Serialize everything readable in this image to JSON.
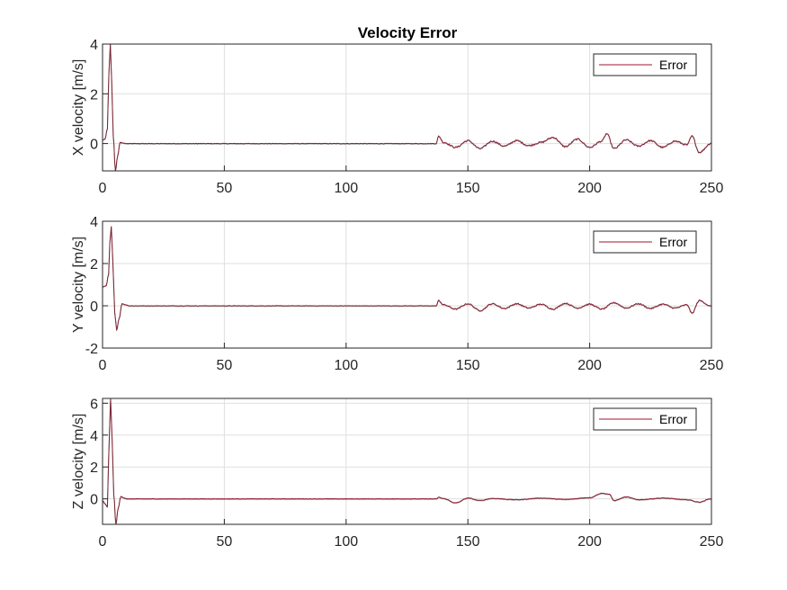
{
  "figure": {
    "title": "Velocity Error"
  },
  "chart_data": [
    {
      "type": "line",
      "title": "Velocity Error",
      "xlabel": "",
      "ylabel": "X velocity [m/s]",
      "xlim": [
        0,
        250
      ],
      "ylim": [
        -1.1,
        4
      ],
      "xticks": [
        0,
        50,
        100,
        150,
        200,
        250
      ],
      "yticks": [
        0,
        2,
        4
      ],
      "grid": true,
      "legend": {
        "placement": "top-right",
        "entries": [
          "Error"
        ]
      },
      "colors": {
        "series": "#a2142f",
        "trace": "#3b3b3b"
      },
      "series": [
        {
          "name": "Error",
          "profile": {
            "init": 0.15,
            "peak": 4.0,
            "peak_t": 3.2,
            "dip": -1.1,
            "dip_t": 5.3,
            "settle_t": 10,
            "noise_t": 137,
            "noise_amp": 0.18,
            "spike": 0.3
          },
          "points": [
            [
              0,
              0.15
            ],
            [
              1,
              0.18
            ],
            [
              2,
              0.6
            ],
            [
              2.6,
              2.8
            ],
            [
              3.2,
              4.0
            ],
            [
              3.8,
              2.4
            ],
            [
              4.4,
              0.3
            ],
            [
              5.3,
              -1.1
            ],
            [
              6.2,
              -0.5
            ],
            [
              7.2,
              0.05
            ],
            [
              8.5,
              0.02
            ],
            [
              10,
              0
            ],
            [
              137,
              0
            ],
            [
              138,
              0.3
            ],
            [
              140,
              0.05
            ],
            [
              145,
              -0.15
            ],
            [
              150,
              0.12
            ],
            [
              155,
              -0.2
            ],
            [
              160,
              0.1
            ],
            [
              165,
              -0.1
            ],
            [
              170,
              0.12
            ],
            [
              175,
              -0.08
            ],
            [
              180,
              0.05
            ],
            [
              185,
              0.25
            ],
            [
              190,
              -0.12
            ],
            [
              195,
              0.18
            ],
            [
              200,
              -0.15
            ],
            [
              205,
              0.1
            ],
            [
              207,
              0.4
            ],
            [
              210,
              -0.2
            ],
            [
              215,
              0.15
            ],
            [
              220,
              -0.1
            ],
            [
              225,
              0.12
            ],
            [
              230,
              -0.15
            ],
            [
              235,
              0.1
            ],
            [
              240,
              -0.05
            ],
            [
              242,
              0.3
            ],
            [
              245,
              -0.35
            ],
            [
              250,
              0.02
            ]
          ]
        }
      ]
    },
    {
      "type": "line",
      "title": "",
      "xlabel": "",
      "ylabel": "Y velocity [m/s]",
      "xlim": [
        0,
        250
      ],
      "ylim": [
        -2,
        4
      ],
      "xticks": [
        0,
        50,
        100,
        150,
        200,
        250
      ],
      "yticks": [
        -2,
        0,
        2,
        4
      ],
      "grid": true,
      "legend": {
        "placement": "top-right",
        "entries": [
          "Error"
        ]
      },
      "colors": {
        "series": "#a2142f",
        "trace": "#3b3b3b"
      },
      "series": [
        {
          "name": "Error",
          "profile": {
            "init": 0.9,
            "peak": 3.75,
            "peak_t": 3.6,
            "dip": -1.15,
            "dip_t": 5.8,
            "settle_t": 11,
            "noise_t": 137,
            "noise_amp": 0.16,
            "spike": 0.25
          },
          "points": [
            [
              0,
              0.9
            ],
            [
              1.5,
              0.95
            ],
            [
              2.5,
              1.5
            ],
            [
              3.0,
              3.0
            ],
            [
              3.6,
              3.75
            ],
            [
              4.2,
              2.2
            ],
            [
              5.0,
              -0.3
            ],
            [
              5.8,
              -1.15
            ],
            [
              6.8,
              -0.6
            ],
            [
              8,
              0.1
            ],
            [
              9.5,
              0.05
            ],
            [
              11,
              0
            ],
            [
              137,
              0
            ],
            [
              138,
              0.25
            ],
            [
              140,
              0.05
            ],
            [
              145,
              -0.15
            ],
            [
              150,
              0.1
            ],
            [
              155,
              -0.22
            ],
            [
              160,
              0.1
            ],
            [
              165,
              -0.12
            ],
            [
              170,
              0.1
            ],
            [
              175,
              -0.1
            ],
            [
              180,
              0.08
            ],
            [
              185,
              -0.15
            ],
            [
              190,
              0.12
            ],
            [
              195,
              -0.1
            ],
            [
              200,
              0.08
            ],
            [
              205,
              -0.15
            ],
            [
              210,
              0.15
            ],
            [
              215,
              -0.1
            ],
            [
              220,
              0.1
            ],
            [
              225,
              -0.12
            ],
            [
              230,
              0.08
            ],
            [
              235,
              -0.1
            ],
            [
              240,
              0.05
            ],
            [
              242,
              -0.35
            ],
            [
              245,
              0.25
            ],
            [
              250,
              -0.02
            ]
          ]
        }
      ]
    },
    {
      "type": "line",
      "title": "",
      "xlabel": "",
      "ylabel": "Z velocity [m/s]",
      "xlim": [
        0,
        250
      ],
      "ylim": [
        -1.6,
        6.3
      ],
      "xticks": [
        0,
        50,
        100,
        150,
        200,
        250
      ],
      "yticks": [
        0,
        2,
        4,
        6
      ],
      "grid": true,
      "legend": {
        "placement": "top-right",
        "entries": [
          "Error"
        ]
      },
      "colors": {
        "series": "#a2142f",
        "trace": "#3b3b3b"
      },
      "series": [
        {
          "name": "Error",
          "profile": {
            "init": -0.1,
            "peak": 6.3,
            "peak_t": 3.3,
            "dip": -1.6,
            "dip_t": 5.5,
            "settle_t": 10,
            "noise_t": 137,
            "noise_amp": 0.1,
            "spike": 0.15
          },
          "points": [
            [
              0,
              -0.1
            ],
            [
              1,
              -0.3
            ],
            [
              2,
              -0.5
            ],
            [
              2.5,
              2.5
            ],
            [
              3.3,
              6.3
            ],
            [
              4.0,
              3.5
            ],
            [
              4.6,
              0.3
            ],
            [
              5.5,
              -1.6
            ],
            [
              6.4,
              -0.6
            ],
            [
              7.5,
              0.15
            ],
            [
              9,
              0.05
            ],
            [
              10,
              0
            ],
            [
              137,
              0
            ],
            [
              138,
              0.1
            ],
            [
              140,
              0.02
            ],
            [
              145,
              -0.25
            ],
            [
              150,
              0.05
            ],
            [
              155,
              -0.1
            ],
            [
              160,
              0.03
            ],
            [
              170,
              -0.05
            ],
            [
              180,
              0.05
            ],
            [
              190,
              -0.03
            ],
            [
              200,
              0.08
            ],
            [
              205,
              0.35
            ],
            [
              208,
              0.3
            ],
            [
              210,
              -0.1
            ],
            [
              215,
              0.12
            ],
            [
              220,
              -0.05
            ],
            [
              230,
              0.05
            ],
            [
              240,
              -0.05
            ],
            [
              245,
              -0.2
            ],
            [
              250,
              0.02
            ]
          ]
        }
      ]
    }
  ]
}
